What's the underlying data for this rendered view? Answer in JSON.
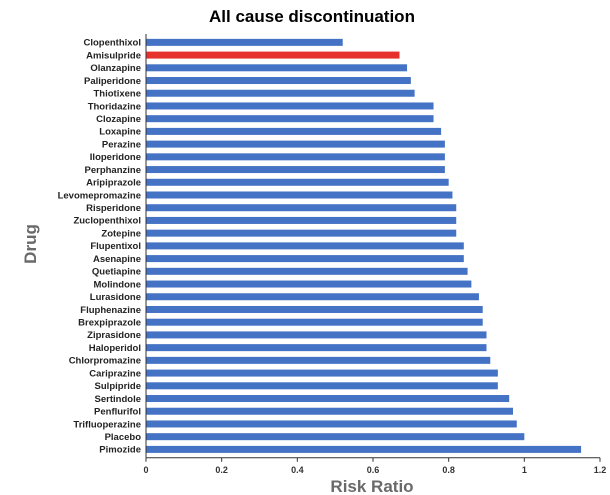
{
  "chart_data": {
    "type": "bar",
    "orientation": "horizontal",
    "title": "All cause discontinuation",
    "xlabel": "Risk Ratio",
    "ylabel": "Drug",
    "xlim": [
      0,
      1.2
    ],
    "xticks": [
      "0",
      "0.2",
      "0.4",
      "0.6",
      "0.8",
      "1",
      "1.2"
    ],
    "grid": false,
    "legend": "none",
    "colors": {
      "default": "#4472c4",
      "highlight": "#e5322d"
    },
    "highlight_category": "Amisulpride",
    "categories": [
      "Clopenthixol",
      "Amisulpride",
      "Olanzapine",
      "Paliperidone",
      "Thiotixene",
      "Thoridazine",
      "Clozapine",
      "Loxapine",
      "Perazine",
      "Iloperidone",
      "Perphanzine",
      "Aripiprazole",
      "Levomepromazine",
      "Risperidone",
      "Zuclopenthixol",
      "Zotepine",
      "Flupentixol",
      "Asenapine",
      "Quetiapine",
      "Molindone",
      "Lurasidone",
      "Fluphenazine",
      "Brexpiprazole",
      "Ziprasidone",
      "Haloperidol",
      "Chlorpromazine",
      "Cariprazine",
      "Sulpipride",
      "Sertindole",
      "Penflurifol",
      "Trifluoperazine",
      "Placebo",
      "Pimozide"
    ],
    "values": [
      0.52,
      0.67,
      0.69,
      0.7,
      0.71,
      0.76,
      0.76,
      0.78,
      0.79,
      0.79,
      0.79,
      0.8,
      0.81,
      0.82,
      0.82,
      0.82,
      0.84,
      0.84,
      0.85,
      0.86,
      0.88,
      0.89,
      0.89,
      0.9,
      0.9,
      0.91,
      0.93,
      0.93,
      0.96,
      0.97,
      0.98,
      1.0,
      1.15
    ]
  }
}
